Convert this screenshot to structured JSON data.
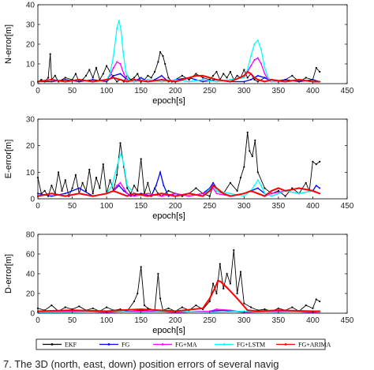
{
  "caption": "7.  The 3D (north, east, down) position errors of several navig",
  "chart_data": [
    {
      "type": "line",
      "xlabel": "epoch[s]",
      "ylabel": "N-error[m]",
      "xlim": [
        0,
        450
      ],
      "ylim": [
        0,
        40
      ],
      "xticks": [
        0,
        50,
        100,
        150,
        200,
        250,
        300,
        350,
        400,
        450
      ],
      "yticks": [
        0,
        10,
        20,
        30,
        40
      ],
      "grid": false,
      "series": [
        {
          "name": "EKF",
          "color": "#000000",
          "x": [
            0,
            5,
            10,
            15,
            18,
            20,
            25,
            30,
            40,
            50,
            55,
            60,
            65,
            70,
            75,
            80,
            85,
            90,
            95,
            100,
            105,
            110,
            115,
            120,
            125,
            130,
            135,
            140,
            145,
            150,
            155,
            160,
            165,
            170,
            175,
            178,
            182,
            185,
            190,
            195,
            200,
            210,
            220,
            230,
            240,
            250,
            255,
            260,
            265,
            270,
            275,
            280,
            285,
            290,
            295,
            300,
            305,
            310,
            315,
            320,
            330,
            340,
            350,
            360,
            370,
            380,
            390,
            400,
            405,
            410
          ],
          "values": [
            1,
            2,
            1,
            3,
            15,
            2,
            4,
            1,
            3,
            2,
            5,
            1,
            2,
            4,
            7,
            3,
            8,
            2,
            5,
            9,
            6,
            3,
            1,
            2,
            1,
            4,
            2,
            3,
            5,
            1,
            2,
            4,
            3,
            6,
            11,
            16,
            14,
            10,
            3,
            1,
            2,
            4,
            2,
            5,
            3,
            2,
            4,
            6,
            2,
            5,
            3,
            6,
            2,
            4,
            3,
            7,
            3,
            5,
            2,
            1,
            3,
            2,
            1,
            2,
            4,
            1,
            3,
            2,
            8,
            6
          ]
        },
        {
          "name": "FG",
          "color": "#0000ff",
          "x": [
            0,
            20,
            40,
            60,
            80,
            100,
            110,
            120,
            130,
            140,
            150,
            160,
            170,
            180,
            190,
            200,
            220,
            240,
            260,
            280,
            300,
            310,
            320,
            330,
            340,
            360,
            380,
            400,
            410
          ],
          "values": [
            1,
            1,
            2,
            1,
            2,
            1,
            4,
            5,
            2,
            1,
            3,
            1,
            2,
            4,
            1,
            2,
            3,
            1,
            2,
            1,
            1,
            2,
            4,
            3,
            1,
            2,
            1,
            2,
            1
          ]
        },
        {
          "name": "FG+MA",
          "color": "#ff00ff",
          "x": [
            0,
            20,
            40,
            60,
            80,
            100,
            105,
            110,
            115,
            120,
            125,
            130,
            140,
            160,
            180,
            200,
            220,
            240,
            260,
            280,
            300,
            305,
            310,
            315,
            320,
            325,
            330,
            335,
            340,
            360,
            380,
            400,
            410
          ],
          "values": [
            1,
            2,
            1,
            2,
            1,
            2,
            4,
            8,
            11,
            10,
            5,
            2,
            1,
            2,
            1,
            2,
            1,
            2,
            1,
            2,
            3,
            6,
            9,
            12,
            13,
            10,
            5,
            2,
            1,
            1,
            2,
            1,
            1
          ]
        },
        {
          "name": "FG+LSTM",
          "color": "#00ffff",
          "x": [
            0,
            20,
            40,
            60,
            80,
            100,
            105,
            110,
            115,
            118,
            121,
            124,
            128,
            132,
            140,
            160,
            180,
            200,
            220,
            240,
            260,
            280,
            300,
            305,
            310,
            315,
            320,
            325,
            330,
            335,
            340,
            360,
            380,
            400,
            410
          ],
          "values": [
            1,
            2,
            1,
            2,
            1,
            2,
            5,
            14,
            28,
            32,
            27,
            16,
            6,
            2,
            1,
            2,
            1,
            2,
            1,
            2,
            1,
            2,
            3,
            7,
            14,
            20,
            22,
            17,
            8,
            3,
            1,
            1,
            2,
            1,
            1
          ]
        },
        {
          "name": "FG+ARIMA",
          "color": "#ff0000",
          "x": [
            0,
            20,
            40,
            60,
            80,
            100,
            110,
            120,
            130,
            140,
            160,
            180,
            200,
            210,
            220,
            230,
            240,
            250,
            260,
            280,
            300,
            305,
            310,
            315,
            320,
            330,
            340,
            360,
            380,
            400,
            410
          ],
          "values": [
            1,
            2,
            1,
            2,
            1,
            2,
            3,
            2,
            1,
            2,
            1,
            2,
            1,
            2,
            3,
            4,
            4,
            3,
            2,
            1,
            4,
            6,
            5,
            3,
            2,
            1,
            2,
            1,
            2,
            1,
            1
          ]
        }
      ]
    },
    {
      "type": "line",
      "xlabel": "epoch[s]",
      "ylabel": "E-error[m]",
      "xlim": [
        0,
        450
      ],
      "ylim": [
        0,
        30
      ],
      "xticks": [
        0,
        50,
        100,
        150,
        200,
        250,
        300,
        350,
        400,
        450
      ],
      "yticks": [
        0,
        10,
        20,
        30
      ],
      "grid": false,
      "series": [
        {
          "name": "EKF",
          "color": "#000000",
          "x": [
            0,
            5,
            10,
            15,
            20,
            25,
            30,
            35,
            40,
            45,
            50,
            55,
            60,
            65,
            70,
            75,
            80,
            85,
            90,
            95,
            100,
            105,
            110,
            115,
            120,
            125,
            130,
            135,
            140,
            145,
            150,
            155,
            160,
            165,
            170,
            175,
            180,
            190,
            200,
            210,
            220,
            230,
            240,
            250,
            255,
            260,
            270,
            280,
            290,
            295,
            300,
            305,
            308,
            312,
            316,
            320,
            330,
            340,
            350,
            360,
            370,
            380,
            390,
            395,
            400,
            405,
            410
          ],
          "values": [
            8,
            2,
            3,
            1,
            5,
            2,
            10,
            3,
            7,
            1,
            4,
            9,
            2,
            6,
            3,
            11,
            2,
            8,
            4,
            13,
            2,
            7,
            3,
            9,
            21,
            12,
            4,
            2,
            5,
            3,
            15,
            2,
            6,
            1,
            4,
            2,
            1,
            3,
            2,
            1,
            2,
            4,
            2,
            1,
            5,
            3,
            2,
            6,
            3,
            8,
            12,
            25,
            18,
            16,
            22,
            10,
            4,
            2,
            3,
            1,
            4,
            2,
            6,
            3,
            14,
            13,
            14
          ]
        },
        {
          "name": "FG",
          "color": "#0000ff",
          "x": [
            0,
            20,
            40,
            60,
            80,
            100,
            110,
            118,
            125,
            135,
            150,
            165,
            172,
            178,
            183,
            190,
            200,
            220,
            240,
            250,
            255,
            260,
            270,
            280,
            300,
            310,
            320,
            330,
            340,
            360,
            380,
            400,
            405,
            410
          ],
          "values": [
            2,
            1,
            2,
            4,
            1,
            2,
            3,
            5,
            3,
            1,
            2,
            1,
            5,
            10,
            5,
            1,
            2,
            1,
            2,
            4,
            6,
            4,
            2,
            1,
            2,
            3,
            4,
            2,
            1,
            3,
            4,
            3,
            5,
            4
          ]
        },
        {
          "name": "FG+MA",
          "color": "#ff00ff",
          "x": [
            0,
            20,
            40,
            60,
            80,
            100,
            110,
            115,
            120,
            125,
            130,
            140,
            160,
            180,
            200,
            220,
            240,
            250,
            255,
            260,
            280,
            300,
            310,
            320,
            330,
            340,
            360,
            380,
            400,
            410
          ],
          "values": [
            1,
            2,
            1,
            2,
            1,
            2,
            3,
            5,
            6,
            4,
            2,
            1,
            2,
            1,
            2,
            1,
            2,
            3,
            4,
            2,
            1,
            2,
            3,
            2,
            1,
            2,
            3,
            2,
            3,
            2
          ]
        },
        {
          "name": "FG+LSTM",
          "color": "#00ffff",
          "x": [
            0,
            20,
            40,
            60,
            80,
            100,
            108,
            113,
            118,
            121,
            125,
            130,
            140,
            160,
            180,
            200,
            220,
            240,
            255,
            260,
            280,
            300,
            310,
            315,
            320,
            325,
            330,
            340,
            360,
            380,
            400,
            410
          ],
          "values": [
            1,
            2,
            1,
            2,
            1,
            2,
            5,
            10,
            15,
            17,
            13,
            5,
            2,
            1,
            2,
            1,
            2,
            1,
            5,
            3,
            2,
            1,
            3,
            5,
            7,
            5,
            2,
            1,
            3,
            2,
            3,
            2
          ]
        },
        {
          "name": "FG+ARIMA",
          "color": "#ff0000",
          "x": [
            0,
            20,
            40,
            60,
            80,
            100,
            110,
            120,
            130,
            140,
            160,
            180,
            200,
            220,
            240,
            250,
            255,
            260,
            270,
            280,
            300,
            310,
            320,
            330,
            340,
            350,
            360,
            380,
            400,
            410
          ],
          "values": [
            1,
            2,
            1,
            2,
            1,
            2,
            3,
            2,
            1,
            2,
            1,
            2,
            1,
            2,
            1,
            3,
            5,
            4,
            2,
            1,
            2,
            3,
            2,
            1,
            3,
            4,
            3,
            4,
            3,
            2
          ]
        }
      ]
    },
    {
      "type": "line",
      "xlabel": "epoch[s]",
      "ylabel": "D-error[m]",
      "xlim": [
        0,
        450
      ],
      "ylim": [
        0,
        80
      ],
      "xticks": [
        0,
        50,
        100,
        150,
        200,
        250,
        300,
        350,
        400,
        450
      ],
      "yticks": [
        0,
        20,
        40,
        60,
        80
      ],
      "grid": false,
      "series": [
        {
          "name": "EKF",
          "color": "#000000",
          "x": [
            0,
            10,
            20,
            30,
            40,
            50,
            60,
            70,
            80,
            90,
            100,
            110,
            120,
            130,
            140,
            145,
            150,
            155,
            160,
            170,
            175,
            178,
            182,
            190,
            200,
            210,
            220,
            230,
            240,
            250,
            255,
            260,
            265,
            270,
            275,
            280,
            285,
            290,
            295,
            300,
            310,
            320,
            330,
            340,
            350,
            360,
            370,
            380,
            390,
            400,
            405,
            410
          ],
          "values": [
            5,
            3,
            8,
            2,
            6,
            4,
            7,
            3,
            5,
            2,
            6,
            3,
            4,
            2,
            12,
            20,
            47,
            8,
            5,
            3,
            40,
            15,
            3,
            5,
            2,
            6,
            3,
            8,
            4,
            12,
            30,
            20,
            50,
            25,
            40,
            30,
            64,
            20,
            42,
            10,
            6,
            3,
            4,
            2,
            5,
            3,
            6,
            2,
            8,
            5,
            14,
            12
          ]
        },
        {
          "name": "FG",
          "color": "#0000ff",
          "x": [
            0,
            50,
            100,
            140,
            150,
            160,
            200,
            250,
            270,
            300,
            350,
            400,
            410
          ],
          "values": [
            1,
            2,
            1,
            2,
            3,
            2,
            1,
            2,
            3,
            1,
            2,
            1,
            1
          ]
        },
        {
          "name": "FG+MA",
          "color": "#ff00ff",
          "x": [
            0,
            50,
            100,
            150,
            200,
            250,
            260,
            280,
            300,
            350,
            400,
            410
          ],
          "values": [
            1,
            2,
            1,
            2,
            1,
            2,
            4,
            3,
            1,
            2,
            1,
            1
          ]
        },
        {
          "name": "FG+LSTM",
          "color": "#00ffff",
          "x": [
            0,
            50,
            100,
            150,
            200,
            250,
            300,
            350,
            400,
            410
          ],
          "values": [
            1,
            1,
            2,
            1,
            2,
            1,
            2,
            1,
            2,
            1
          ]
        },
        {
          "name": "FG+ARIMA",
          "color": "#ff0000",
          "x": [
            0,
            50,
            100,
            120,
            150,
            200,
            240,
            250,
            258,
            262,
            266,
            275,
            290,
            305,
            320,
            350,
            400,
            410
          ],
          "values": [
            2,
            3,
            2,
            3,
            4,
            2,
            5,
            15,
            26,
            33,
            32,
            26,
            15,
            3,
            2,
            3,
            2,
            2
          ]
        }
      ]
    }
  ],
  "legend": {
    "placement": "bottom",
    "entries": [
      "EKF",
      "FG",
      "FG+MA",
      "FG+LSTM",
      "FG+ARIMA"
    ]
  }
}
